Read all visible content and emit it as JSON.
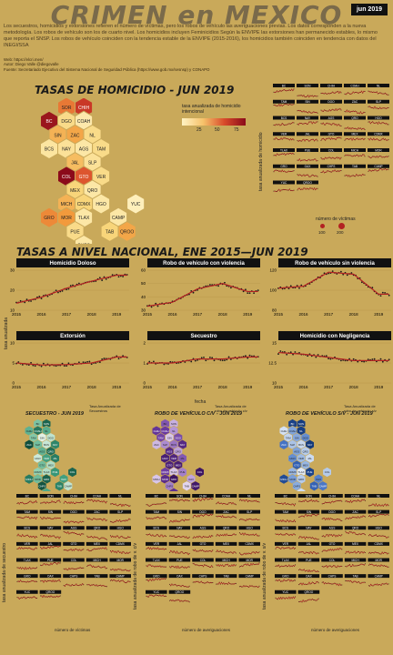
{
  "header": {
    "title": "CRIMEN en MEXICO",
    "date": "jun 2019",
    "intro": "Los secuestros, homicidios y extorsiones refieren el número de víctimas, pero los robos de vehículo las averiguaciones previas. Los datos corresponden a la nueva metodología. Los robos de vehículo son los de cuarto nivel. Los homicidios incluyen Feminicidios Según la ENVIPE las extorsiones han permanecido estables, lo mismo que reporta el SNSP. Los robos de vehículo coinciden con la tendencia estable de la ENVIPE (2015-2016), los homicidios también coinciden en tendencia con datos del INEGI/SSA",
    "web": "Web: https://elcri.men/",
    "autor": "Autor: Diego Valle @diegovalle",
    "fuente": "Fuente: Secretariado Ejecutivo del Sistema Nacional de Seguridad Pública (https://www.gob.mx/sesnsp) y CONAPO"
  },
  "sections": {
    "homicide_map_title": "TASAS DE HOMICIDIO - JUN 2019",
    "homicide_legend": "tasa anualizada de homicidio intencional",
    "homicide_legend_ticks": [
      "25",
      "50",
      "75"
    ],
    "homicide_small_ylabel": "tasa anualizada de homicidio",
    "victims_legend": "número de víctimas",
    "victims_ticks": [
      "100",
      "200"
    ],
    "national_title": "TASAS A NIVEL NACIONAL, ENE 2015—JUN 2019",
    "national_ylabel": "tasa anualizada",
    "national_xlabel": "fecha",
    "secuestro_map_title": "SECUESTRO - JUN 2019",
    "secuestro_legend": "Tasa Anualizada de Secuestros",
    "robo_cv_map_title": "ROBO DE VEHÍCULO C/V - JUN 2019",
    "robo_cv_legend": "Tasa Anualizada de robo de vehículo c/v",
    "robo_sv_map_title": "ROBO DE VEHÍCULO S/V - JUN 2019",
    "robo_sv_legend": "Tasa Anualizada de robo de vehículo s/v",
    "secuestro_small_ylabel": "tasa anualizada de secuestro",
    "robo_cv_small_ylabel": "tasa anualizada de robo de v. c/v",
    "robo_sv_small_ylabel": "tasa anualizada de robo de v. s/v",
    "averiguaciones_legend": "número de averiguaciones"
  },
  "colors": {
    "background": "#c9a95a",
    "homicide_low": "#fff3c4",
    "homicide_high": "#8b0a1a",
    "secuestro_high": "#0d4a3a",
    "robo_cv_high": "#3b1460",
    "robo_sv_high": "#0b2e6b",
    "line": "#b22222",
    "dots": "#1a1a1a"
  },
  "states": [
    "BC",
    "SON",
    "CHIH",
    "COAH",
    "NL",
    "TAM",
    "SIN",
    "DGO",
    "ZAC",
    "SLP",
    "BCS",
    "NAY",
    "AGS",
    "QRO",
    "HGO",
    "VER",
    "JAL",
    "GTO",
    "MEX",
    "CDMX",
    "TLAX",
    "PUE",
    "COL",
    "MICH",
    "MOR",
    "GRO",
    "OAX",
    "CHPS",
    "TAB",
    "CAMP",
    "YUC",
    "QROO"
  ],
  "homicide_map": [
    {
      "s": "SOR",
      "v": 60
    },
    {
      "s": "CHIH",
      "v": 80
    },
    {
      "s": "BC",
      "v": 95
    },
    {
      "s": "DGO",
      "v": 20
    },
    {
      "s": "COAH",
      "v": 8
    },
    {
      "s": "SIN",
      "v": 40
    },
    {
      "s": "ZAC",
      "v": 45
    },
    {
      "s": "NL",
      "v": 20
    },
    {
      "s": "BCS",
      "v": 12
    },
    {
      "s": "NAY",
      "v": 15
    },
    {
      "s": "AGS",
      "v": 10
    },
    {
      "s": "TAM",
      "v": 20
    },
    {
      "s": "JAL",
      "v": 35
    },
    {
      "s": "SLP",
      "v": 15
    },
    {
      "s": "COL",
      "v": 100
    },
    {
      "s": "GTO",
      "v": 70
    },
    {
      "s": "VER",
      "v": 20
    },
    {
      "s": "MEX",
      "v": 25
    },
    {
      "s": "QRO",
      "v": 10
    },
    {
      "s": "MICH",
      "v": 40
    },
    {
      "s": "CDMX",
      "v": 25
    },
    {
      "s": "HGO",
      "v": 10
    },
    {
      "s": "YUC",
      "v": 3
    },
    {
      "s": "GRO",
      "v": 55
    },
    {
      "s": "MOR",
      "v": 50
    },
    {
      "s": "TLAX",
      "v": 10
    },
    {
      "s": "CAMP",
      "v": 10
    },
    {
      "s": "PUE",
      "v": 20
    },
    {
      "s": "TAB",
      "v": 25
    },
    {
      "s": "QROO",
      "v": 45
    },
    {
      "s": "CHPS",
      "v": 10
    },
    {
      "s": "OAX",
      "v": 30
    }
  ],
  "chart_data": [
    {
      "type": "line",
      "title": "Homicidio Doloso",
      "x": [
        2015,
        2016,
        2017,
        2018,
        2019
      ],
      "values": [
        13.5,
        16.5,
        21.0,
        24.5,
        27.5
      ],
      "ylim": [
        10,
        30
      ],
      "yticks": [
        10,
        20,
        30
      ]
    },
    {
      "type": "line",
      "title": "Robo de vehículo con violencia",
      "x": [
        2015,
        2016,
        2017,
        2018,
        2019
      ],
      "values": [
        33,
        36,
        46,
        50,
        44
      ],
      "ylim": [
        30,
        60
      ],
      "yticks": [
        30,
        40,
        50,
        60
      ]
    },
    {
      "type": "line",
      "title": "Robo de vehículo sin violencia",
      "x": [
        2015,
        2016,
        2017,
        2018,
        2019
      ],
      "values": [
        102,
        104,
        118,
        116,
        96
      ],
      "ylim": [
        80,
        120
      ],
      "yticks": [
        80,
        100,
        120
      ]
    },
    {
      "type": "line",
      "title": "Extorsión",
      "x": [
        2015,
        2016,
        2017,
        2018,
        2019
      ],
      "values": [
        5.0,
        4.5,
        4.6,
        5.0,
        6.5
      ],
      "ylim": [
        0,
        10
      ],
      "yticks": [
        0,
        5,
        10
      ]
    },
    {
      "type": "line",
      "title": "Secuestro",
      "x": [
        2015,
        2016,
        2017,
        2018,
        2019
      ],
      "values": [
        1.0,
        1.0,
        1.2,
        1.2,
        1.3
      ],
      "ylim": [
        0,
        2
      ],
      "yticks": [
        0,
        1,
        2
      ]
    },
    {
      "type": "line",
      "title": "Homicidio con Negligencia",
      "x": [
        2015,
        2016,
        2017,
        2018,
        2019
      ],
      "values": [
        13.8,
        13.6,
        13.2,
        12.8,
        12.8
      ],
      "ylim": [
        10,
        15
      ],
      "yticks": [
        10,
        12.5,
        15
      ]
    }
  ],
  "x_tick_labels": [
    "2015",
    "2016",
    "2017",
    "2018",
    "2019"
  ]
}
